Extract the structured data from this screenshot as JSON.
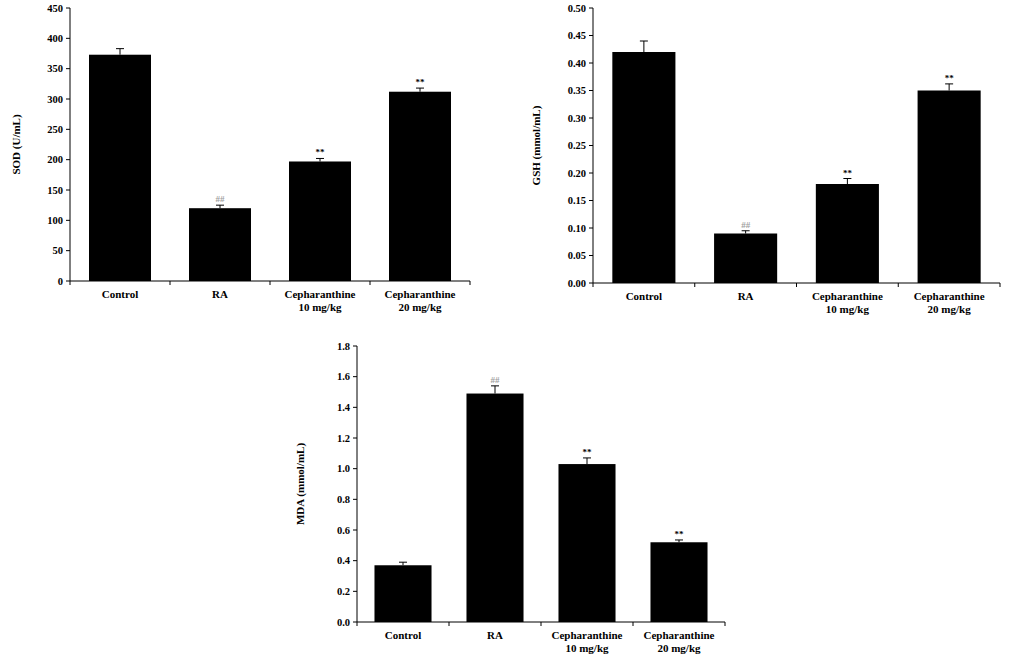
{
  "chart_data": [
    {
      "type": "bar",
      "y_label": "SOD (U/mL)",
      "categories": [
        "Control",
        "RA",
        "Cepharanthine 10 mg/kg",
        "Cepharanthine 20 mg/kg"
      ],
      "values": [
        373,
        120,
        197,
        312
      ],
      "errors": [
        10,
        5,
        5,
        6
      ],
      "color": "#000000",
      "ylim": [
        0,
        450
      ],
      "yticks": [
        0,
        50,
        100,
        150,
        200,
        250,
        300,
        350,
        400,
        450
      ],
      "annotations": [
        {
          "category": "RA",
          "text": "##",
          "color": "#a0a0a0"
        },
        {
          "category": "Cepharanthine 10 mg/kg",
          "text": "**",
          "color": "#000000"
        },
        {
          "category": "Cepharanthine 20 mg/kg",
          "text": "**",
          "color": "#000000"
        }
      ]
    },
    {
      "type": "bar",
      "y_label": "GSH (mmol/mL)",
      "categories": [
        "Control",
        "RA",
        "Cepharanthine 10 mg/kg",
        "Cepharanthine 20 mg/kg"
      ],
      "values": [
        0.42,
        0.09,
        0.18,
        0.35
      ],
      "errors": [
        0.02,
        0.005,
        0.01,
        0.012
      ],
      "color": "#000000",
      "ylim": [
        0,
        0.5
      ],
      "yticks": [
        {
          "value": 0,
          "label": "0.00"
        },
        {
          "value": 0.05,
          "label": "0.05"
        },
        {
          "value": 0.1,
          "label": "0.10"
        },
        {
          "value": 0.15,
          "label": "0.15"
        },
        {
          "value": 0.2,
          "label": "0.20"
        },
        {
          "value": 0.25,
          "label": "0.25"
        },
        {
          "value": 0.3,
          "label": "0.30"
        },
        {
          "value": 0.35,
          "label": "0.35"
        },
        {
          "value": 0.4,
          "label": "0.40"
        },
        {
          "value": 0.45,
          "label": "0.45"
        },
        {
          "value": 0.5,
          "label": "0.50"
        }
      ],
      "annotations": [
        {
          "category": "RA",
          "text": "##",
          "color": "#a0a0a0"
        },
        {
          "category": "Cepharanthine 10 mg/kg",
          "text": "**",
          "color": "#000000"
        },
        {
          "category": "Cepharanthine 20 mg/kg",
          "text": "**",
          "color": "#000000"
        }
      ]
    },
    {
      "type": "bar",
      "y_label": "MDA  (mmol/mL)",
      "categories": [
        "Control",
        "RA",
        "Cepharanthine 10 mg/kg",
        "Cepharanthine 20 mg/kg"
      ],
      "values": [
        0.37,
        1.49,
        1.03,
        0.52
      ],
      "errors": [
        0.02,
        0.05,
        0.04,
        0.015
      ],
      "color": "#000000",
      "ylim": [
        0,
        1.8
      ],
      "yticks": [
        {
          "value": 0,
          "label": "0.0"
        },
        {
          "value": 0.2,
          "label": "0.2"
        },
        {
          "value": 0.4,
          "label": "0.4"
        },
        {
          "value": 0.6,
          "label": "0.6"
        },
        {
          "value": 0.8,
          "label": "0.8"
        },
        {
          "value": 1,
          "label": "1.0"
        },
        {
          "value": 1.2,
          "label": "1.2"
        },
        {
          "value": 1.4,
          "label": "1.4"
        },
        {
          "value": 1.6,
          "label": "1.6"
        },
        {
          "value": 1.8,
          "label": "1.8"
        }
      ],
      "annotations": [
        {
          "category": "RA",
          "text": "##",
          "color": "#a0a0a0"
        },
        {
          "category": "Cepharanthine 10 mg/kg",
          "text": "**",
          "color": "#000000"
        },
        {
          "category": "Cepharanthine 20 mg/kg",
          "text": "**",
          "color": "#000000"
        }
      ]
    }
  ]
}
